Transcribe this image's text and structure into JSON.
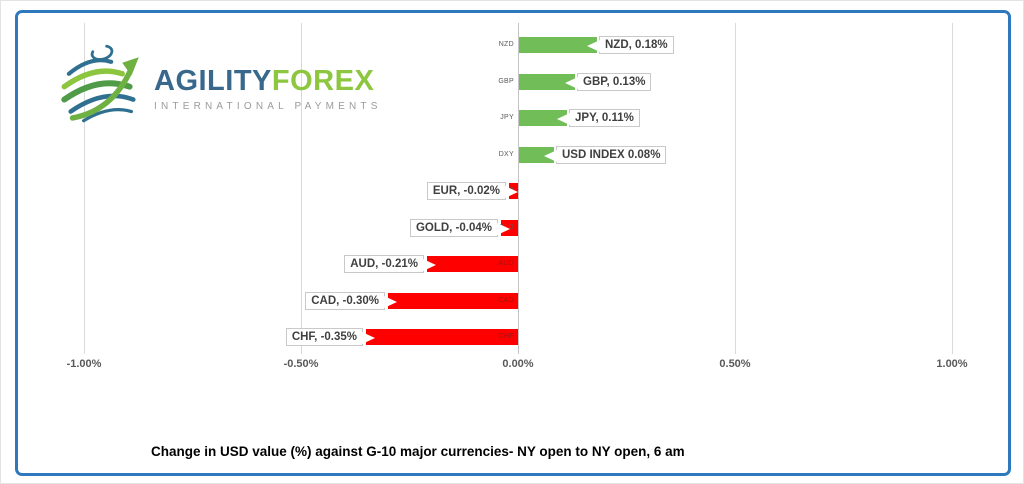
{
  "logo": {
    "brand_primary": "AGILITY",
    "brand_secondary": "FOREX",
    "tagline": "INTERNATIONAL PAYMENTS",
    "primary_color": "#38688C",
    "secondary_color": "#8DC63F",
    "tagline_color": "#9B9B9B"
  },
  "frame": {
    "border_color": "#2E79BD"
  },
  "chart_data": {
    "type": "bar",
    "orientation": "horizontal",
    "title": "Change in  USD value (%)  against  G-10 major currencies-  NY open to  NY open, 6 am",
    "categories": [
      "NZD",
      "GBP",
      "JPY",
      "DXY",
      "EUR",
      "GOLD",
      "AUD",
      "CAD",
      "CHF"
    ],
    "values": [
      0.18,
      0.13,
      0.11,
      0.08,
      -0.02,
      -0.04,
      -0.21,
      -0.3,
      -0.35
    ],
    "data_labels": [
      "NZD, 0.18%",
      "GBP, 0.13%",
      "JPY, 0.11%",
      "USD INDEX 0.08%",
      "EUR, -0.02%",
      "GOLD, -0.04%",
      "AUD, -0.21%",
      "CAD, -0.30%",
      "CHF, -0.35%"
    ],
    "x_tick_labels": [
      "-1.00%",
      "-0.50%",
      "0.00%",
      "0.50%",
      "1.00%"
    ],
    "x_tick_values": [
      -1.0,
      -0.5,
      0.0,
      0.5,
      1.0
    ],
    "xlim": [
      -1.0,
      1.0
    ],
    "grid": true,
    "legend": false,
    "positive_color": "#71BE59",
    "negative_color": "#FE0000",
    "gridline_color": "#D9D9D9"
  }
}
